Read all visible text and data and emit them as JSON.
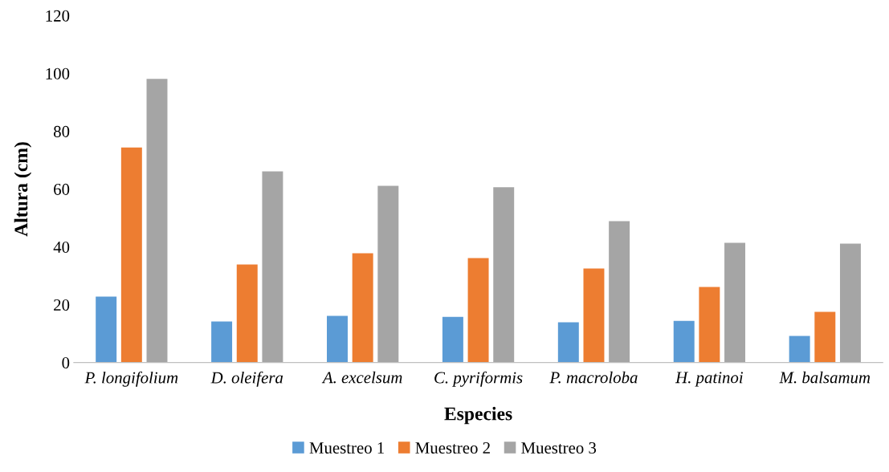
{
  "chart_data": {
    "type": "bar",
    "xlabel": "Especies",
    "ylabel": "Altura (cm)",
    "categories": [
      "P. longifolium",
      "D. oleifera",
      "A. excelsum",
      "C. pyriformis",
      "P. macroloba",
      "H. patinoi",
      "M. balsamum"
    ],
    "series": [
      {
        "name": "Muestreo 1",
        "color": "#5b9bd5",
        "values": [
          22.8,
          14.2,
          16.1,
          15.8,
          13.9,
          14.4,
          9.2
        ]
      },
      {
        "name": "Muestreo 2",
        "color": "#ed7d31",
        "values": [
          74.4,
          33.9,
          37.8,
          36.1,
          32.5,
          26.1,
          17.5
        ]
      },
      {
        "name": "Muestreo 3",
        "color": "#a5a5a5",
        "values": [
          98.1,
          66.1,
          61.1,
          60.6,
          48.9,
          41.4,
          41.1
        ]
      }
    ],
    "ylim": [
      0,
      120
    ],
    "yticks": [
      0,
      20,
      40,
      60,
      80,
      100,
      120
    ],
    "grid": false,
    "legend": "bottom"
  }
}
